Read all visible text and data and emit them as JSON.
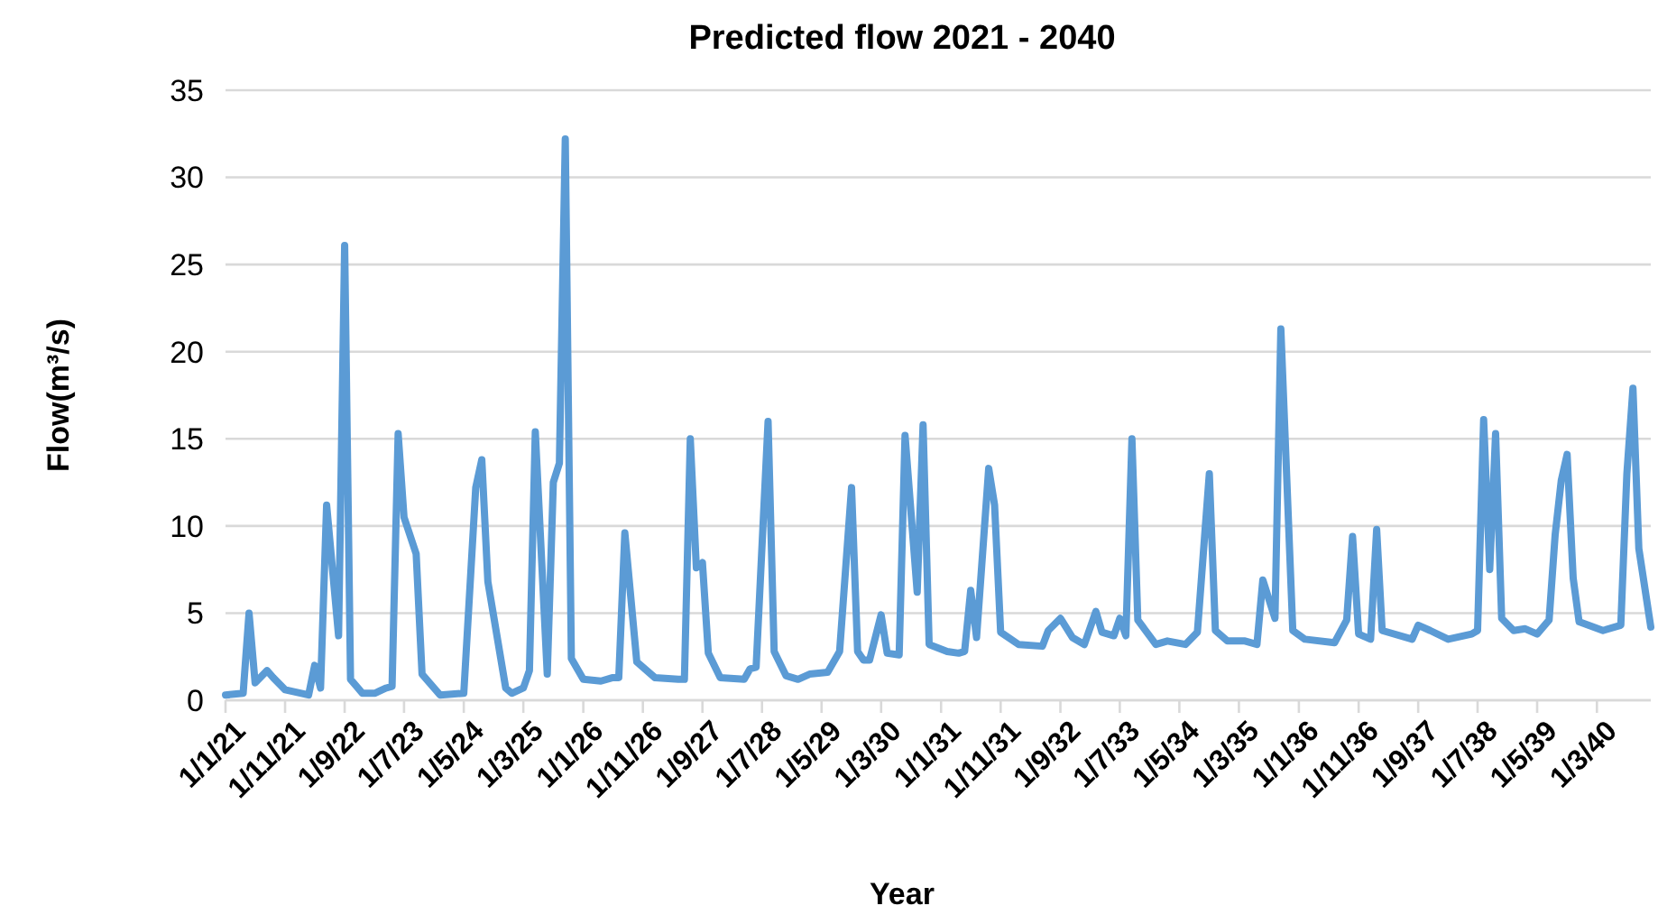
{
  "chart_data": {
    "type": "line",
    "title": "Predicted flow 2021 - 2040",
    "xlabel": "Year",
    "ylabel": "Flow(m³/s)",
    "x": [
      "2021-01",
      "2021-04",
      "2021-05",
      "2021-06",
      "2021-08",
      "2021-09",
      "2021-11",
      "2022-03",
      "2022-04",
      "2022-05",
      "2022-06",
      "2022-08",
      "2022-09",
      "2022-10",
      "2022-12",
      "2023-02",
      "2023-04",
      "2023-05",
      "2023-06",
      "2023-07",
      "2023-09",
      "2023-10",
      "2024-01",
      "2024-05",
      "2024-07",
      "2024-08",
      "2024-09",
      "2024-12",
      "2025-01",
      "2025-03",
      "2025-04",
      "2025-05",
      "2025-07",
      "2025-08",
      "2025-09",
      "2025-10",
      "2025-11",
      "2026-01",
      "2026-04",
      "2026-06",
      "2026-07",
      "2026-08",
      "2026-10",
      "2027-01",
      "2027-05",
      "2027-06",
      "2027-07",
      "2027-08",
      "2027-09",
      "2027-10",
      "2027-12",
      "2028-04",
      "2028-05",
      "2028-06",
      "2028-08",
      "2028-09",
      "2028-11",
      "2029-01",
      "2029-03",
      "2029-06",
      "2029-08",
      "2029-10",
      "2029-11",
      "2029-12",
      "2030-01",
      "2030-03",
      "2030-04",
      "2030-06",
      "2030-07",
      "2030-09",
      "2030-10",
      "2030-11",
      "2031-02",
      "2031-04",
      "2031-05",
      "2031-06",
      "2031-07",
      "2031-09",
      "2031-10",
      "2031-11",
      "2032-02",
      "2032-06",
      "2032-07",
      "2032-09",
      "2032-11",
      "2033-01",
      "2033-03",
      "2033-04",
      "2033-06",
      "2033-07",
      "2033-08",
      "2033-09",
      "2033-10",
      "2034-01",
      "2034-03",
      "2034-06",
      "2034-08",
      "2034-10",
      "2034-11",
      "2035-01",
      "2035-04",
      "2035-06",
      "2035-07",
      "2035-09",
      "2035-10",
      "2035-12",
      "2036-02",
      "2036-07",
      "2036-09",
      "2036-10",
      "2036-11",
      "2037-01",
      "2037-02",
      "2037-03",
      "2037-08",
      "2037-09",
      "2037-11",
      "2038-02",
      "2038-06",
      "2038-07",
      "2038-08",
      "2038-09",
      "2038-10",
      "2038-11",
      "2039-01",
      "2039-03",
      "2039-05",
      "2039-07",
      "2039-08",
      "2039-09",
      "2039-10",
      "2039-11",
      "2039-12",
      "2040-04",
      "2040-07",
      "2040-08",
      "2040-09",
      "2040-10",
      "2040-12"
    ],
    "series": [
      {
        "color": "#5b9bd5",
        "values": [
          0.3,
          0.4,
          5.0,
          1.0,
          1.7,
          1.3,
          0.6,
          0.3,
          2.0,
          0.7,
          11.2,
          3.7,
          26.1,
          1.2,
          0.4,
          0.4,
          0.7,
          0.8,
          15.3,
          10.5,
          8.4,
          1.5,
          0.3,
          0.4,
          12.2,
          13.8,
          6.8,
          0.7,
          0.4,
          0.7,
          1.7,
          15.4,
          1.5,
          12.5,
          13.6,
          32.2,
          2.4,
          1.2,
          1.1,
          1.3,
          1.3,
          9.6,
          2.2,
          1.3,
          1.2,
          1.2,
          15.0,
          7.6,
          7.9,
          2.7,
          1.3,
          1.2,
          1.8,
          1.9,
          16.0,
          2.8,
          1.4,
          1.2,
          1.5,
          1.6,
          2.8,
          12.2,
          2.8,
          2.3,
          2.3,
          4.9,
          2.7,
          2.6,
          15.2,
          6.2,
          15.8,
          3.2,
          2.8,
          2.7,
          2.8,
          6.3,
          3.6,
          13.3,
          11.2,
          3.9,
          3.2,
          3.1,
          4.0,
          4.7,
          3.6,
          3.2,
          5.1,
          3.9,
          3.7,
          4.7,
          3.7,
          15.0,
          4.6,
          3.2,
          3.4,
          3.2,
          3.9,
          13.0,
          4.0,
          3.4,
          3.4,
          3.2,
          6.9,
          4.7,
          21.3,
          4.0,
          3.5,
          3.3,
          4.6,
          9.4,
          3.8,
          3.5,
          9.8,
          4.0,
          3.5,
          4.3,
          4.0,
          3.5,
          3.8,
          4.0,
          16.1,
          7.5,
          15.3,
          4.7,
          4.0,
          4.1,
          3.8,
          4.6,
          9.5,
          12.6,
          14.1,
          7.0,
          4.5,
          4.0,
          4.3,
          13.0,
          17.9,
          8.7,
          4.2
        ]
      }
    ],
    "xlim": [
      "2021-01",
      "2040-12"
    ],
    "xticks": [
      {
        "value": "2021-01",
        "label": "1/1/21"
      },
      {
        "value": "2021-11",
        "label": "1/11/21"
      },
      {
        "value": "2022-09",
        "label": "1/9/22"
      },
      {
        "value": "2023-07",
        "label": "1/7/23"
      },
      {
        "value": "2024-05",
        "label": "1/5/24"
      },
      {
        "value": "2025-03",
        "label": "1/3/25"
      },
      {
        "value": "2026-01",
        "label": "1/1/26"
      },
      {
        "value": "2026-11",
        "label": "1/11/26"
      },
      {
        "value": "2027-09",
        "label": "1/9/27"
      },
      {
        "value": "2028-07",
        "label": "1/7/28"
      },
      {
        "value": "2029-05",
        "label": "1/5/29"
      },
      {
        "value": "2030-03",
        "label": "1/3/30"
      },
      {
        "value": "2031-01",
        "label": "1/1/31"
      },
      {
        "value": "2031-11",
        "label": "1/11/31"
      },
      {
        "value": "2032-09",
        "label": "1/9/32"
      },
      {
        "value": "2033-07",
        "label": "1/7/33"
      },
      {
        "value": "2034-05",
        "label": "1/5/34"
      },
      {
        "value": "2035-03",
        "label": "1/3/35"
      },
      {
        "value": "2036-01",
        "label": "1/1/36"
      },
      {
        "value": "2036-11",
        "label": "1/11/36"
      },
      {
        "value": "2037-09",
        "label": "1/9/37"
      },
      {
        "value": "2038-07",
        "label": "1/7/38"
      },
      {
        "value": "2039-05",
        "label": "1/5/39"
      },
      {
        "value": "2040-03",
        "label": "1/3/40"
      }
    ],
    "ylim": [
      0,
      35
    ],
    "yticks": [
      0,
      5,
      10,
      15,
      20,
      25,
      30,
      35
    ],
    "grid": "y",
    "marker": "none",
    "line_style": "solid"
  }
}
